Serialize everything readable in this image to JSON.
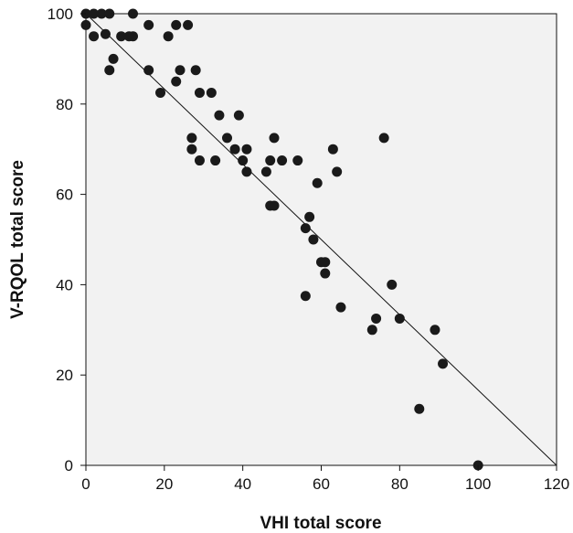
{
  "chart_data": {
    "type": "scatter",
    "xlabel": "VHI total score",
    "ylabel": "V-RQOL total score",
    "xlim": [
      0,
      120
    ],
    "ylim": [
      0,
      100
    ],
    "xticks": [
      0,
      20,
      40,
      60,
      80,
      100,
      120
    ],
    "yticks": [
      0,
      20,
      40,
      60,
      80,
      100
    ],
    "grid": false,
    "legend": "none",
    "plot_background": "#f2f2f2",
    "marker_color": "#1a1a1a",
    "reference_line": {
      "from": [
        0,
        100
      ],
      "to": [
        120,
        0
      ]
    },
    "series": [
      {
        "points": [
          [
            0,
            100
          ],
          [
            0,
            97.5
          ],
          [
            2,
            100
          ],
          [
            2,
            95
          ],
          [
            4,
            100
          ],
          [
            5,
            95.5
          ],
          [
            6,
            100
          ],
          [
            6,
            87.5
          ],
          [
            7,
            90
          ],
          [
            9,
            95
          ],
          [
            11,
            95
          ],
          [
            12,
            95
          ],
          [
            12,
            100
          ],
          [
            16,
            97.5
          ],
          [
            16,
            87.5
          ],
          [
            19,
            82.5
          ],
          [
            21,
            95
          ],
          [
            23,
            97.5
          ],
          [
            23,
            85
          ],
          [
            24,
            87.5
          ],
          [
            26,
            97.5
          ],
          [
            27,
            72.5
          ],
          [
            27,
            70
          ],
          [
            28,
            87.5
          ],
          [
            29,
            82.5
          ],
          [
            29,
            67.5
          ],
          [
            32,
            82.5
          ],
          [
            33,
            67.5
          ],
          [
            34,
            77.5
          ],
          [
            36,
            72.5
          ],
          [
            38,
            70
          ],
          [
            39,
            77.5
          ],
          [
            40,
            67.5
          ],
          [
            41,
            70
          ],
          [
            41,
            65
          ],
          [
            46,
            65
          ],
          [
            47,
            67.5
          ],
          [
            47,
            57.5
          ],
          [
            48,
            72.5
          ],
          [
            48,
            57.5
          ],
          [
            50,
            67.5
          ],
          [
            54,
            67.5
          ],
          [
            56,
            52.5
          ],
          [
            56,
            37.5
          ],
          [
            57,
            55
          ],
          [
            58,
            50
          ],
          [
            59,
            62.5
          ],
          [
            60,
            45
          ],
          [
            61,
            45
          ],
          [
            61,
            42.5
          ],
          [
            63,
            70
          ],
          [
            64,
            65
          ],
          [
            65,
            35
          ],
          [
            73,
            30
          ],
          [
            74,
            32.5
          ],
          [
            76,
            72.5
          ],
          [
            78,
            40
          ],
          [
            80,
            32.5
          ],
          [
            85,
            12.5
          ],
          [
            89,
            30
          ],
          [
            91,
            22.5
          ],
          [
            100,
            0
          ]
        ]
      }
    ]
  }
}
